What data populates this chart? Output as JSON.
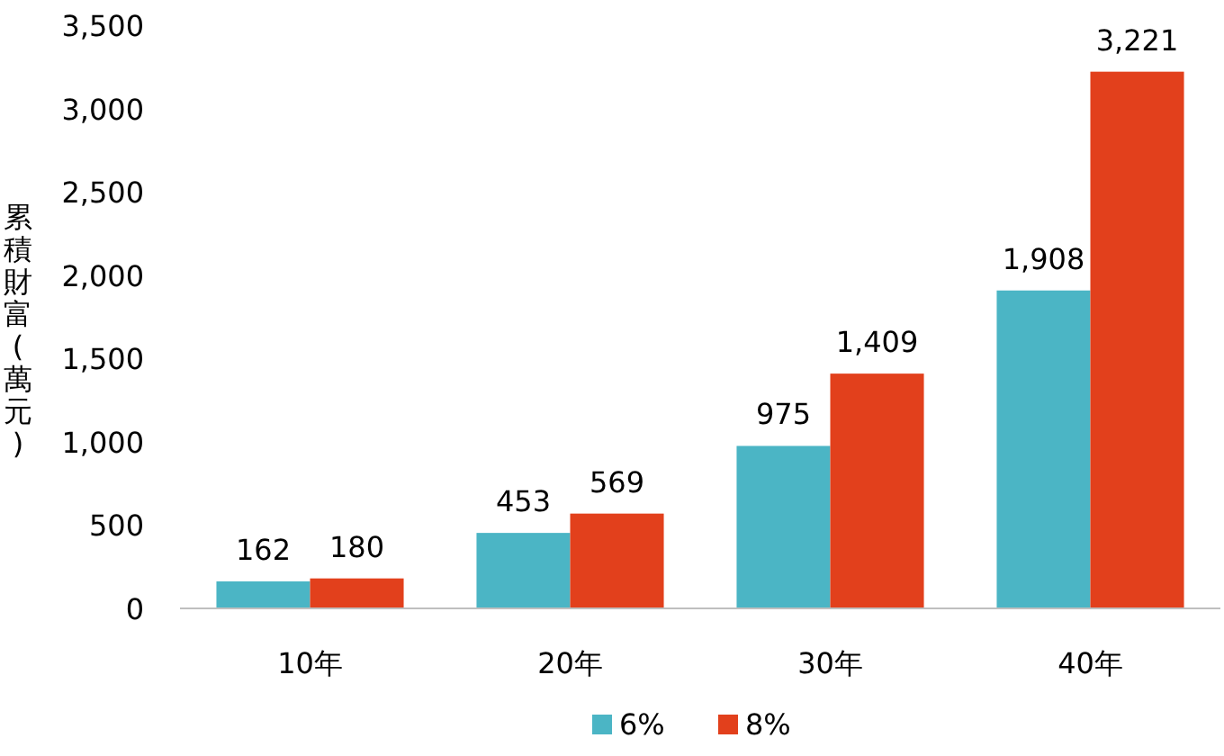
{
  "chart_data": {
    "type": "bar",
    "ylabel": "累積財富(萬元)",
    "categories": [
      "10年",
      "20年",
      "30年",
      "40年"
    ],
    "series": [
      {
        "name": "6%",
        "color": "#4bb5c5",
        "values": [
          162,
          453,
          975,
          1908
        ],
        "value_labels": [
          "162",
          "453",
          "975",
          "1,908"
        ]
      },
      {
        "name": "8%",
        "color": "#e2401c",
        "values": [
          180,
          569,
          1409,
          3221
        ],
        "value_labels": [
          "180",
          "569",
          "1,409",
          "3,221"
        ]
      }
    ],
    "ylim": [
      0,
      3500
    ],
    "yticks": [
      {
        "value": 0,
        "label": "0"
      },
      {
        "value": 500,
        "label": "500"
      },
      {
        "value": 1000,
        "label": "1,000"
      },
      {
        "value": 1500,
        "label": "1,500"
      },
      {
        "value": 2000,
        "label": "2,000"
      },
      {
        "value": 2500,
        "label": "2,500"
      },
      {
        "value": 3000,
        "label": "3,000"
      },
      {
        "value": 3500,
        "label": "3,500"
      }
    ],
    "legend": "bottom",
    "grid": false
  }
}
